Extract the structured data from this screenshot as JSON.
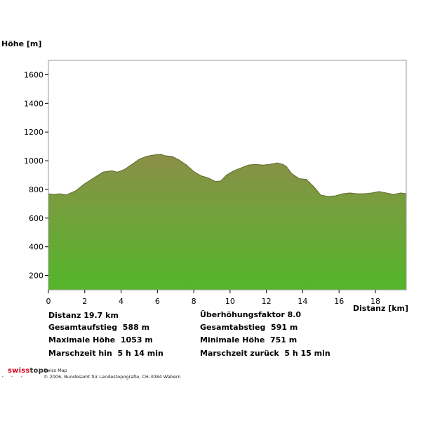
{
  "chart_data": {
    "type": "area",
    "ylabel": "Höhe [m]",
    "xlabel": "Distanz [km]",
    "xlim": [
      0,
      19.7
    ],
    "ylim": [
      100,
      1700
    ],
    "x_ticks": [
      0,
      2,
      4,
      6,
      8,
      10,
      12,
      14,
      16,
      18
    ],
    "y_ticks": [
      200,
      400,
      600,
      800,
      1000,
      1200,
      1400,
      1600
    ],
    "grid": false,
    "fill_gradient": [
      "#8b8f48",
      "#53b62a"
    ],
    "x": [
      0,
      0.3,
      0.6,
      1.0,
      1.5,
      2.0,
      2.5,
      3.0,
      3.2,
      3.5,
      3.8,
      4.2,
      4.6,
      5.0,
      5.4,
      5.8,
      6.2,
      6.4,
      6.8,
      7.2,
      7.6,
      8.0,
      8.4,
      8.8,
      9.2,
      9.5,
      9.8,
      10.2,
      10.6,
      11.0,
      11.4,
      11.8,
      12.2,
      12.6,
      12.9,
      13.1,
      13.4,
      13.8,
      14.2,
      14.6,
      15.0,
      15.4,
      15.8,
      16.2,
      16.6,
      17.0,
      17.4,
      17.8,
      18.2,
      18.6,
      19.0,
      19.4,
      19.7
    ],
    "y": [
      770,
      765,
      770,
      762,
      790,
      840,
      880,
      920,
      925,
      930,
      920,
      940,
      975,
      1010,
      1030,
      1040,
      1045,
      1035,
      1030,
      1005,
      970,
      925,
      895,
      880,
      855,
      860,
      900,
      930,
      950,
      970,
      975,
      970,
      975,
      985,
      975,
      960,
      910,
      875,
      870,
      820,
      760,
      751,
      755,
      770,
      775,
      770,
      770,
      775,
      785,
      775,
      765,
      775,
      770
    ],
    "stats": {
      "distanz": "Distanz 19.7 km",
      "gesamtaufstieg": "Gesamtaufstieg  588 m",
      "maximale_hoehe": "Maximale Höhe  1053 m",
      "marschzeit_hin": "Marschzeit hin  5 h 14 min",
      "ueberhoehung": "Überhöhungsfaktor 8.0",
      "gesamtabstieg": "Gesamtabstieg  591 m",
      "minimale_hoehe": "Minimale Höhe  751 m",
      "marschzeit_zurueck": "Marschzeit zurück  5 h 15 min"
    }
  },
  "footer": {
    "logo_a": "swiss",
    "logo_b": "topo",
    "logo_dots": "• • •",
    "line1": "Swiss Map",
    "line2": "© 2006, Bundesamt für Landestopografie, CH-3084 Wabern"
  }
}
